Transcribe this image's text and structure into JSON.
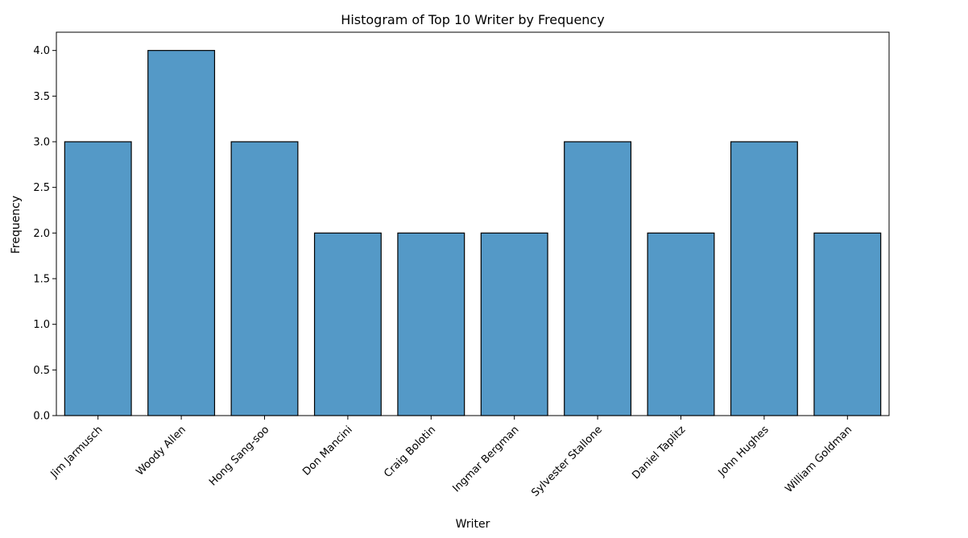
{
  "chart_data": {
    "type": "bar",
    "title": "Histogram of Top 10 Writer by Frequency",
    "xlabel": "Writer",
    "ylabel": "Frequency",
    "categories": [
      "Jim Jarmusch",
      "Woody Allen",
      "Hong Sang-soo",
      "Don Mancini",
      "Craig Bolotin",
      "Ingmar Bergman",
      "Sylvester Stallone",
      "Daniel Taplitz",
      "John Hughes",
      "William Goldman"
    ],
    "values": [
      3,
      4,
      3,
      2,
      2,
      2,
      3,
      2,
      3,
      2
    ],
    "ylim": [
      0,
      4.2
    ],
    "yticks": [
      "0.0",
      "0.5",
      "1.0",
      "1.5",
      "2.0",
      "2.5",
      "3.0",
      "3.5",
      "4.0"
    ],
    "bar_color": "#5499c7",
    "edge_color": "#000000",
    "grid": false,
    "legend": "none"
  }
}
